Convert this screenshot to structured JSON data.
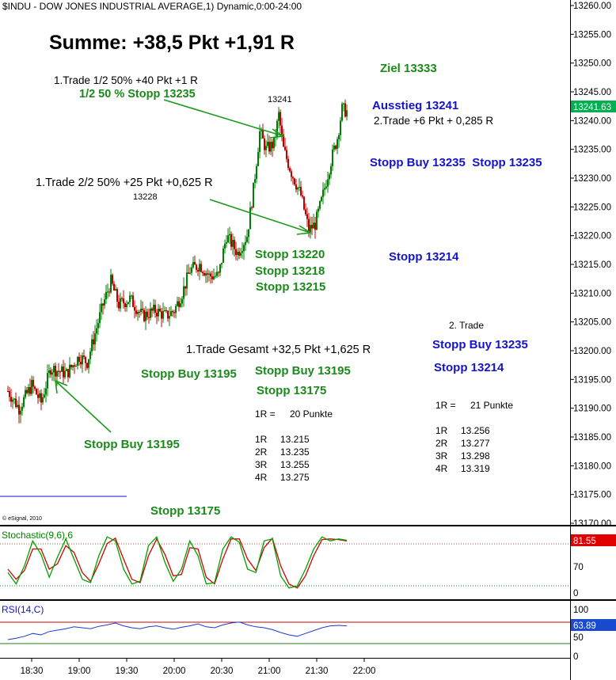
{
  "chart_title": "$INDU - DOW JONES INDUSTRIAL AVERAGE,1) Dynamic,0:00-24:00",
  "copyright": "© eSignal, 2010",
  "current_price_label": "13241.63",
  "colors": {
    "up": "#008000",
    "down": "#c00000",
    "green_text": "#1a8a1a",
    "blue_text": "#1414c8",
    "price_tag": "#00b050",
    "stoch_tag": "#e00000",
    "rsi_tag": "#1a4ad0"
  },
  "annotations": {
    "summe": "Summe: +38,5 Pkt +1,91 R",
    "ziel": "Ziel 13333",
    "trade1_half1": "1.Trade 1/2 50% +40 Pkt +1 R",
    "stopp_half": "1/2 50 % Stopp 13235",
    "peak": "13241",
    "ausstieg": "Ausstieg 13241",
    "trade2_result": "2.Trade +6 Pkt + 0,285 R",
    "stopp_buy_pair": "Stopp Buy 13235  Stopp 13235",
    "trade1_half2": "1.Trade 2/2 50% +25 Pkt +0,625 R",
    "low_13228": "13228",
    "stopp_13220": "Stopp 13220",
    "stopp_13218": "Stopp 13218",
    "stopp_13215": "Stopp 13215",
    "stopp_13214_a": "Stopp 13214",
    "trade2_heading": "2. Trade",
    "stopp_buy_13235": "Stopp Buy 13235",
    "stopp_13214_b": "Stopp 13214",
    "trade1_total": "1.Trade Gesamt +32,5 Pkt +1,625 R",
    "stopp_buy_13195_a": "Stopp Buy 13195",
    "stopp_buy_13195_b": "Stopp Buy 13195",
    "stopp_13175_a": "Stopp 13175",
    "stopp_buy_13195_c": "Stopp Buy 13195",
    "stopp_13175_b": "Stopp 13175"
  },
  "r_table_trade1": {
    "header_label": "1R =",
    "header_value": "20 Punkte",
    "rows": [
      {
        "label": "1R",
        "value": "13.215"
      },
      {
        "label": "2R",
        "value": "13.235"
      },
      {
        "label": "3R",
        "value": "13.255"
      },
      {
        "label": "4R",
        "value": "13.275"
      }
    ]
  },
  "r_table_trade2": {
    "header_label": "1R =",
    "header_value": "21 Punkte",
    "rows": [
      {
        "label": "1R",
        "value": "13.256"
      },
      {
        "label": "2R",
        "value": "13.277"
      },
      {
        "label": "3R",
        "value": "13.298"
      },
      {
        "label": "4R",
        "value": "13.319"
      }
    ]
  },
  "chart_data": {
    "type": "candlestick",
    "title": "$INDU - DOW JONES INDUSTRIAL AVERAGE,1) Dynamic,0:00-24:00",
    "x_tick_labels": [
      "18:30",
      "19:00",
      "19:30",
      "20:00",
      "20:30",
      "21:00",
      "21:30",
      "22:00"
    ],
    "price_axis": {
      "range": [
        13166,
        13261
      ],
      "ticks": [
        13170,
        13175,
        13180,
        13185,
        13190,
        13195,
        13200,
        13205,
        13210,
        13215,
        13220,
        13225,
        13230,
        13235,
        13240,
        13245,
        13250,
        13255,
        13260
      ],
      "tick_labels": [
        "13170.00",
        "13175.00",
        "13180.00",
        "13185.00",
        "13190.00",
        "13195.00",
        "13200.00",
        "13205.00",
        "13210.00",
        "13215.00",
        "13220.00",
        "13225.00",
        "13230.00",
        "13235.00",
        "13240.00",
        "13245.00",
        "13250.00",
        "13255.00",
        "13260.00"
      ]
    },
    "price_waypoints": [
      {
        "t": "18:15",
        "price": 13193
      },
      {
        "t": "18:22",
        "price": 13190
      },
      {
        "t": "18:30",
        "price": 13194
      },
      {
        "t": "18:36",
        "price": 13191
      },
      {
        "t": "18:42",
        "price": 13197
      },
      {
        "t": "18:52",
        "price": 13196
      },
      {
        "t": "19:00",
        "price": 13199
      },
      {
        "t": "19:05",
        "price": 13198
      },
      {
        "t": "19:10",
        "price": 13203
      },
      {
        "t": "19:15",
        "price": 13208
      },
      {
        "t": "19:20",
        "price": 13212
      },
      {
        "t": "19:25",
        "price": 13208
      },
      {
        "t": "19:32",
        "price": 13209
      },
      {
        "t": "19:40",
        "price": 13206
      },
      {
        "t": "19:48",
        "price": 13207
      },
      {
        "t": "19:55",
        "price": 13206
      },
      {
        "t": "20:00",
        "price": 13207
      },
      {
        "t": "20:05",
        "price": 13210
      },
      {
        "t": "20:10",
        "price": 13214
      },
      {
        "t": "20:16",
        "price": 13215
      },
      {
        "t": "20:22",
        "price": 13213
      },
      {
        "t": "20:28",
        "price": 13213
      },
      {
        "t": "20:33",
        "price": 13220
      },
      {
        "t": "20:40",
        "price": 13217
      },
      {
        "t": "20:46",
        "price": 13220
      },
      {
        "t": "20:50",
        "price": 13228
      },
      {
        "t": "20:54",
        "price": 13238
      },
      {
        "t": "20:58",
        "price": 13235
      },
      {
        "t": "21:03",
        "price": 13236
      },
      {
        "t": "21:06",
        "price": 13241
      },
      {
        "t": "21:09",
        "price": 13235
      },
      {
        "t": "21:14",
        "price": 13231
      },
      {
        "t": "21:20",
        "price": 13227
      },
      {
        "t": "21:25",
        "price": 13221
      },
      {
        "t": "21:29",
        "price": 13222
      },
      {
        "t": "21:33",
        "price": 13226
      },
      {
        "t": "21:39",
        "price": 13233
      },
      {
        "t": "21:43",
        "price": 13237
      },
      {
        "t": "21:46",
        "price": 13242
      },
      {
        "t": "21:49",
        "price": 13241.6
      }
    ],
    "annotation_arrows": [
      {
        "from": "1/2 50 % Stopp 13235",
        "to_t": "21:03",
        "to_price": 13237
      },
      {
        "from": "1.Trade 2/2 50% +25 Pkt +0,625 R",
        "to_t": "21:27",
        "to_price": 13220
      },
      {
        "from": "Stopp Buy 13195",
        "to_t": "18:36",
        "to_price": 13195
      }
    ],
    "panels": [
      {
        "name": "Stochastic(9,6),6",
        "range": [
          0,
          100
        ],
        "tick_labels": [
          "70",
          "0"
        ],
        "levels": [
          80,
          20
        ],
        "current_value": "81.55",
        "series": [
          {
            "color": "green",
            "values": [
              35,
              18,
              45,
              82,
              62,
              28,
              58,
              85,
              55,
              25,
              20,
              60,
              88,
              82,
              40,
              18,
              22,
              75,
              88,
              50,
              22,
              40,
              82,
              60,
              18,
              20,
              70,
              88,
              80,
              40,
              35,
              82,
              85,
              30,
              12,
              15,
              40,
              70,
              88,
              82,
              85,
              83
            ]
          },
          {
            "color": "red",
            "values": [
              40,
              25,
              38,
              70,
              70,
              40,
              48,
              75,
              65,
              35,
              22,
              48,
              78,
              86,
              55,
              25,
              20,
              60,
              85,
              62,
              30,
              32,
              72,
              70,
              28,
              18,
              55,
              85,
              85,
              55,
              38,
              72,
              86,
              45,
              18,
              12,
              30,
              60,
              84,
              85,
              84,
              82
            ]
          }
        ]
      },
      {
        "name": "RSI(14,C)",
        "range": [
          0,
          100
        ],
        "tick_labels": [
          "100",
          "50",
          "0"
        ],
        "levels": [
          70,
          30
        ],
        "current_value": "63.89",
        "series": [
          {
            "color": "blue",
            "values": [
              35,
              38,
              42,
              48,
              45,
              52,
              55,
              58,
              62,
              60,
              58,
              63,
              66,
              70,
              64,
              60,
              58,
              62,
              64,
              60,
              57,
              61,
              64,
              68,
              62,
              60,
              66,
              70,
              72,
              66,
              62,
              60,
              56,
              50,
              45,
              42,
              48,
              54,
              60,
              64,
              65,
              64
            ]
          }
        ]
      }
    ]
  }
}
